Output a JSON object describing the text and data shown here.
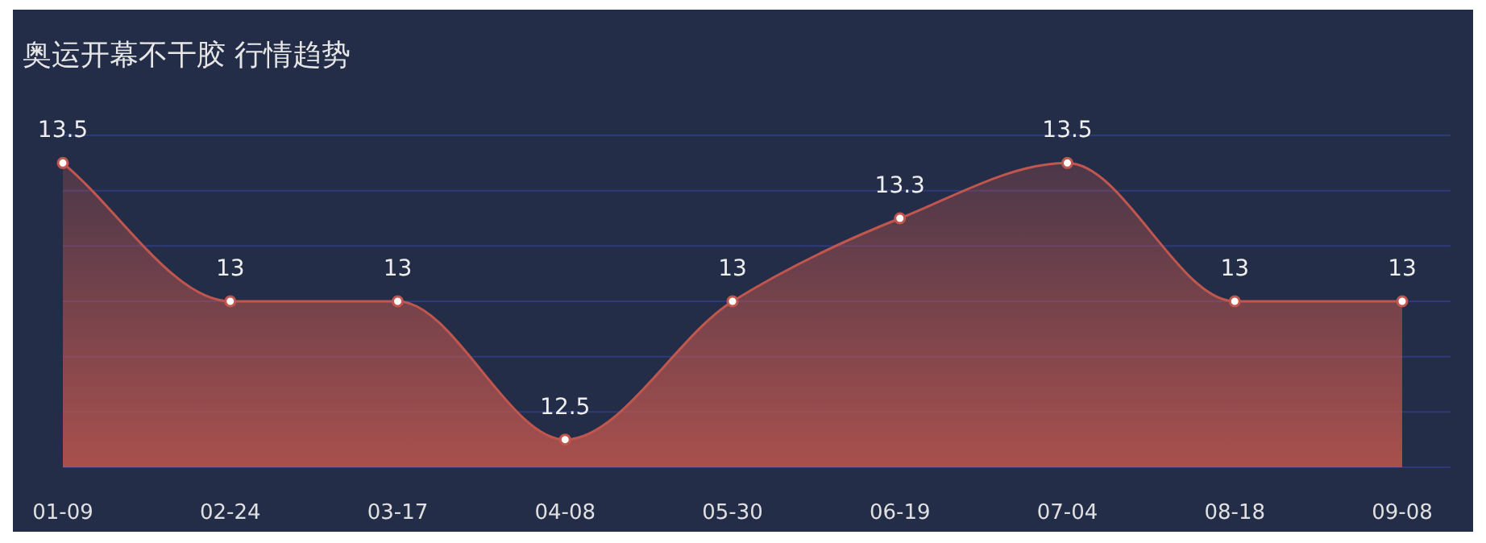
{
  "chart_data": {
    "type": "area",
    "title": "奥运开幕不干胶 行情趋势",
    "categories": [
      "01-09",
      "02-24",
      "03-17",
      "04-08",
      "05-30",
      "06-19",
      "07-04",
      "08-18",
      "09-08"
    ],
    "series": [
      {
        "color": "#c0564e",
        "values": [
          13.5,
          13,
          13,
          12.5,
          13,
          13.3,
          13.5,
          13,
          13
        ]
      }
    ],
    "ylim": [
      12.4,
      13.6
    ],
    "yticks": [
      12.4,
      12.6,
      12.8,
      13.0,
      13.2,
      13.4,
      13.6
    ],
    "grid": "y",
    "tick_labels": "x",
    "data_labels": true,
    "marker": "circle",
    "line_style": "solid"
  }
}
